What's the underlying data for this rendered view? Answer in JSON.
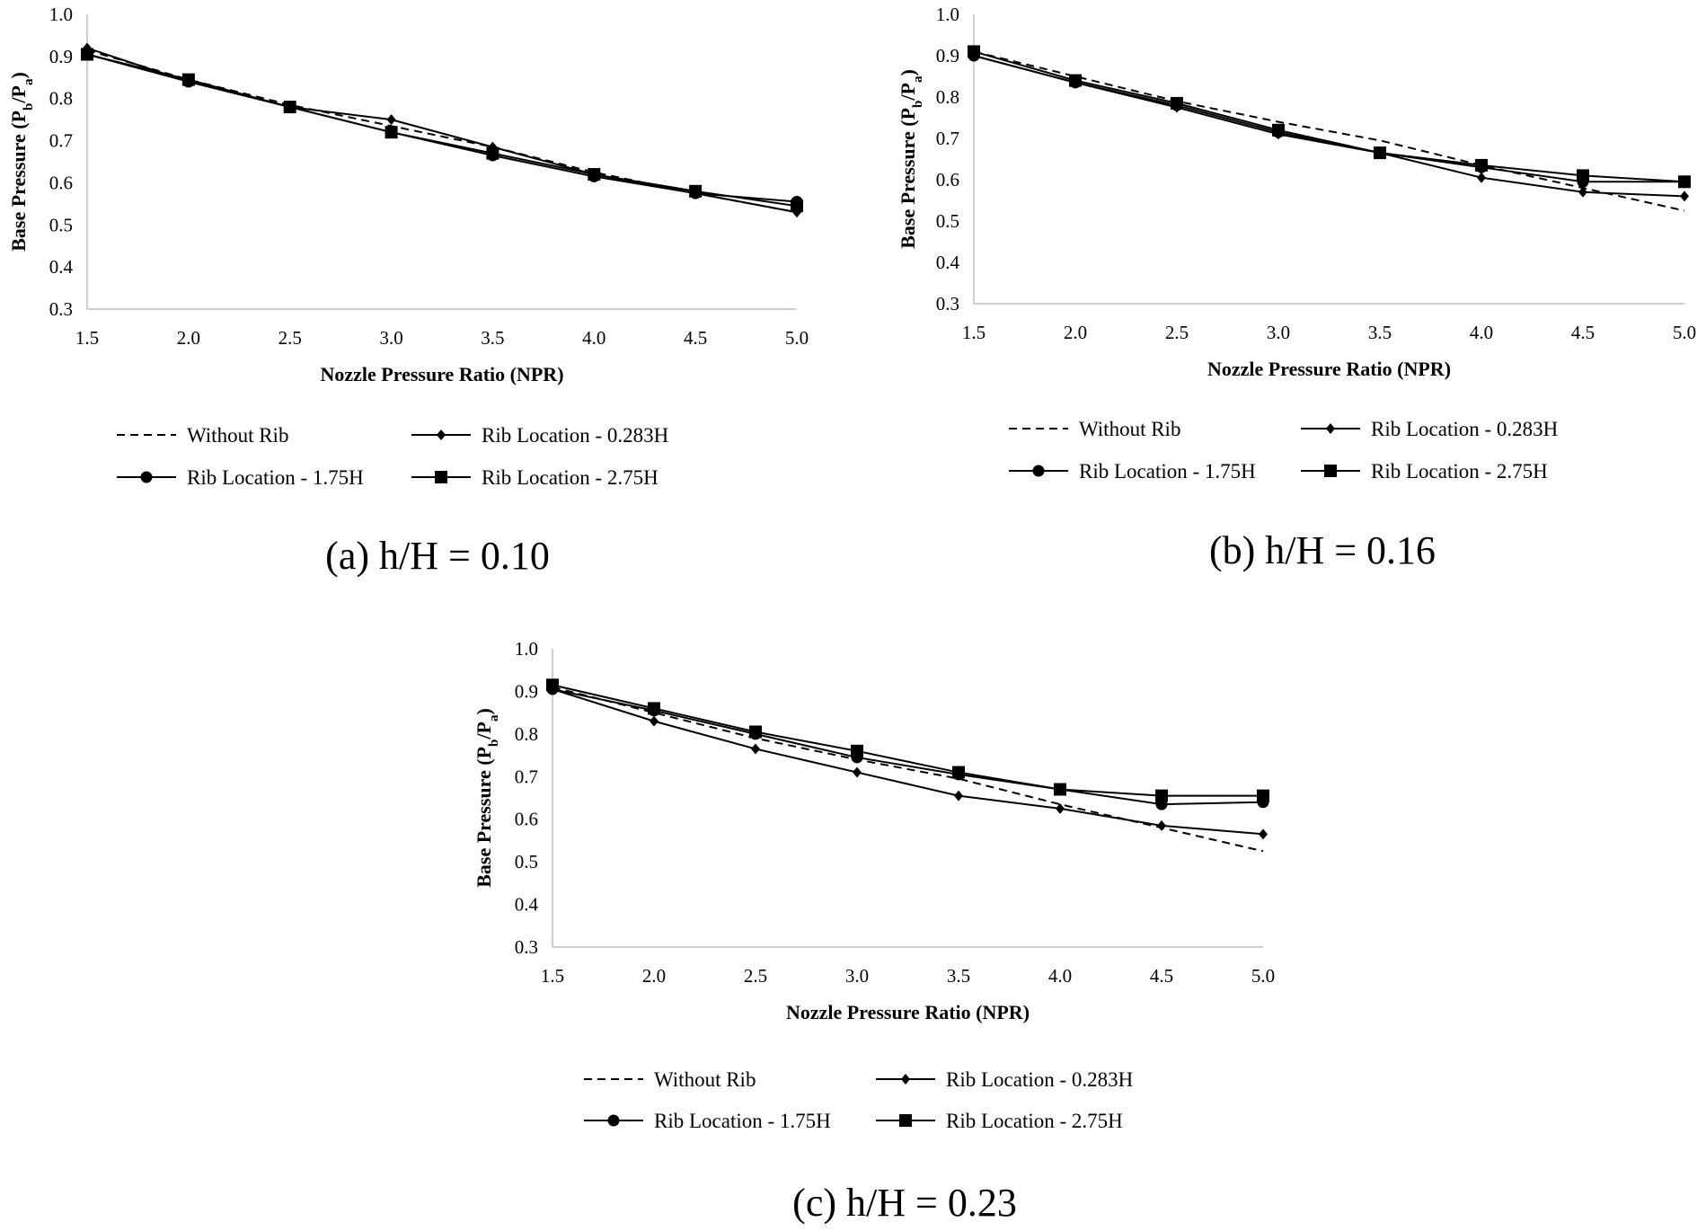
{
  "legend": {
    "without_rib": "Without Rib",
    "rib_0283": "Rib Location - 0.283H",
    "rib_175": "Rib Location - 1.75H",
    "rib_275": "Rib Location - 2.75H"
  },
  "colors": {
    "line": "#000000",
    "axis": "#bfbfbf"
  },
  "chart_data": [
    {
      "type": "line",
      "caption": "(a) h/H = 0.10",
      "xlabel": "Nozzle Pressure Ratio (NPR)",
      "ylabel_main": "Base Pressure (P",
      "ylabel_sub1": "b",
      "ylabel_mid": "/P",
      "ylabel_sub2": "a",
      "ylabel_end": ")",
      "x": [
        1.5,
        2.0,
        2.5,
        3.0,
        3.5,
        4.0,
        4.5,
        5.0
      ],
      "x_tick_labels": [
        "1.5",
        "2.0",
        "2.5",
        "3.0",
        "3.5",
        "4.0",
        "4.5",
        "5.0"
      ],
      "y_tick_labels": [
        "1.0",
        "0.9",
        "0.8",
        "0.7",
        "0.6",
        "0.5",
        "0.4",
        "0.3"
      ],
      "xlim": [
        1.5,
        5.0
      ],
      "ylim": [
        0.3,
        1.0
      ],
      "series": [
        {
          "name": "Without Rib",
          "marker": "none",
          "dash": true,
          "values": [
            0.915,
            0.845,
            0.785,
            0.735,
            0.685,
            0.625,
            0.575,
            0.53
          ]
        },
        {
          "name": "Rib Location - 0.283H",
          "marker": "diamond",
          "dash": false,
          "values": [
            0.92,
            0.84,
            0.78,
            0.75,
            0.685,
            0.62,
            0.575,
            0.53
          ]
        },
        {
          "name": "Rib Location - 1.75H",
          "marker": "circle",
          "dash": false,
          "values": [
            0.905,
            0.84,
            0.78,
            0.72,
            0.665,
            0.615,
            0.575,
            0.555
          ]
        },
        {
          "name": "Rib Location - 2.75H",
          "marker": "square",
          "dash": false,
          "values": [
            0.905,
            0.845,
            0.78,
            0.72,
            0.67,
            0.62,
            0.58,
            0.545
          ]
        }
      ]
    },
    {
      "type": "line",
      "caption": "(b) h/H = 0.16",
      "xlabel": "Nozzle Pressure Ratio (NPR)",
      "ylabel_main": "Base Pressure (P",
      "ylabel_sub1": "b",
      "ylabel_mid": "/P",
      "ylabel_sub2": "a",
      "ylabel_end": ")",
      "x": [
        1.5,
        2.0,
        2.5,
        3.0,
        3.5,
        4.0,
        4.5,
        5.0
      ],
      "x_tick_labels": [
        "1.5",
        "2.0",
        "2.5",
        "3.0",
        "3.5",
        "4.0",
        "4.5",
        "5.0"
      ],
      "y_tick_labels": [
        "1.0",
        "0.9",
        "0.8",
        "0.7",
        "0.6",
        "0.5",
        "0.4",
        "0.3"
      ],
      "xlim": [
        1.5,
        5.0
      ],
      "ylim": [
        0.3,
        1.0
      ],
      "series": [
        {
          "name": "Without Rib",
          "marker": "none",
          "dash": true,
          "values": [
            0.91,
            0.85,
            0.79,
            0.74,
            0.695,
            0.635,
            0.58,
            0.525
          ]
        },
        {
          "name": "Rib Location - 0.283H",
          "marker": "diamond",
          "dash": false,
          "values": [
            0.9,
            0.835,
            0.775,
            0.71,
            0.665,
            0.605,
            0.57,
            0.56
          ]
        },
        {
          "name": "Rib Location - 1.75H",
          "marker": "circle",
          "dash": false,
          "values": [
            0.9,
            0.835,
            0.78,
            0.715,
            0.665,
            0.63,
            0.595,
            0.595
          ]
        },
        {
          "name": "Rib Location - 2.75H",
          "marker": "square",
          "dash": false,
          "values": [
            0.91,
            0.84,
            0.785,
            0.72,
            0.665,
            0.635,
            0.61,
            0.595
          ]
        }
      ]
    },
    {
      "type": "line",
      "caption": "(c) h/H = 0.23",
      "xlabel": "Nozzle Pressure Ratio (NPR)",
      "ylabel_main": "Base Pressure (P",
      "ylabel_sub1": "b",
      "ylabel_mid": "/P",
      "ylabel_sub2": "a",
      "ylabel_end": ")",
      "x": [
        1.5,
        2.0,
        2.5,
        3.0,
        3.5,
        4.0,
        4.5,
        5.0
      ],
      "x_tick_labels": [
        "1.5",
        "2.0",
        "2.5",
        "3.0",
        "3.5",
        "4.0",
        "4.5",
        "5.0"
      ],
      "y_tick_labels": [
        "1.0",
        "0.9",
        "0.8",
        "0.7",
        "0.6",
        "0.5",
        "0.4",
        "0.3"
      ],
      "xlim": [
        1.5,
        5.0
      ],
      "ylim": [
        0.3,
        1.0
      ],
      "series": [
        {
          "name": "Without Rib",
          "marker": "none",
          "dash": true,
          "values": [
            0.91,
            0.85,
            0.79,
            0.74,
            0.695,
            0.635,
            0.58,
            0.525
          ]
        },
        {
          "name": "Rib Location - 0.283H",
          "marker": "diamond",
          "dash": false,
          "values": [
            0.905,
            0.83,
            0.765,
            0.71,
            0.655,
            0.625,
            0.585,
            0.565
          ]
        },
        {
          "name": "Rib Location - 1.75H",
          "marker": "circle",
          "dash": false,
          "values": [
            0.905,
            0.855,
            0.8,
            0.745,
            0.705,
            0.67,
            0.635,
            0.64
          ]
        },
        {
          "name": "Rib Location - 2.75H",
          "marker": "square",
          "dash": false,
          "values": [
            0.915,
            0.86,
            0.805,
            0.76,
            0.71,
            0.67,
            0.655,
            0.655
          ]
        }
      ]
    }
  ]
}
